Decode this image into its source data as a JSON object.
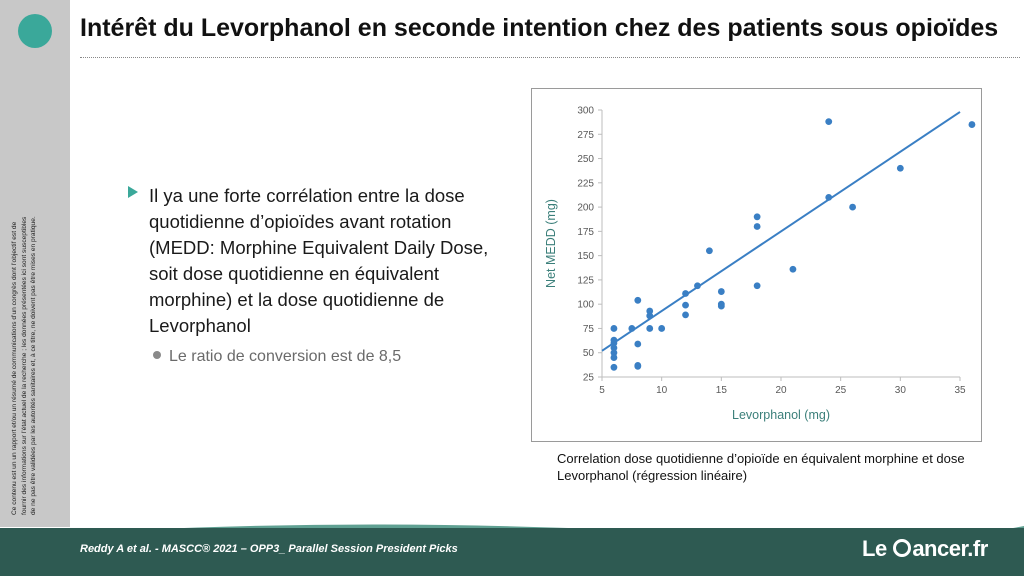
{
  "slide": {
    "title": "Intérêt du Levorphanol en seconde intention chez des patients sous opioïdes",
    "bullet": "Il ya une forte corrélation entre la dose quotidienne d’opioïdes avant rotation (MEDD:  Morphine Equivalent Daily Dose, soit dose quotidienne en équivalent morphine) et la dose quotidienne de Levorphanol",
    "sub_bullet": "Le ratio de conversion est de 8,5",
    "caption": "Correlation dose quotidienne d’opioïde en équivalent morphine et dose Levorphanol (régression linéaire)",
    "disclaimer": "Ce contenu est un un rapport et/ou un résumé de communications d’un congrès dont l’objectif est de fournir des informations sur l’état actuel de la recherche ; les données présentées ici sont susceptibles de ne pas être validées par les autorités sanitaires et, à ce titre, ne doivent pas être mises en pratique.",
    "footer_citation": "Reddy A et al. - MASCC® 2021 – OPP3_ Parallel Session President Picks",
    "brand_left": "Le",
    "brand_right": "ancer.fr"
  },
  "colors": {
    "accent": "#3aa89a",
    "footer": "#2e5a52",
    "footer_light": "#5fa092",
    "series": "#3a7fc4"
  },
  "chart_data": {
    "type": "scatter",
    "xlabel": "Levorphanol  (mg)",
    "ylabel": "Net MEDD (mg)",
    "xlim": [
      5,
      35
    ],
    "ylim": [
      25,
      300
    ],
    "xticks": [
      5,
      10,
      15,
      20,
      25,
      30,
      35
    ],
    "yticks": [
      25,
      50,
      75,
      100,
      125,
      150,
      175,
      200,
      225,
      250,
      275,
      300
    ],
    "grid": false,
    "points": [
      [
        6,
        75
      ],
      [
        6,
        63
      ],
      [
        6,
        60
      ],
      [
        6,
        55
      ],
      [
        6,
        50
      ],
      [
        6,
        45
      ],
      [
        6,
        35
      ],
      [
        7.5,
        75
      ],
      [
        8,
        104
      ],
      [
        8,
        59
      ],
      [
        8,
        37
      ],
      [
        8,
        36
      ],
      [
        9,
        93
      ],
      [
        9,
        88
      ],
      [
        9,
        75
      ],
      [
        10,
        75
      ],
      [
        12,
        111
      ],
      [
        12,
        99
      ],
      [
        12,
        89
      ],
      [
        13,
        119
      ],
      [
        14,
        155
      ],
      [
        15,
        113
      ],
      [
        15,
        100
      ],
      [
        15,
        98
      ],
      [
        18,
        190
      ],
      [
        18,
        180
      ],
      [
        18,
        119
      ],
      [
        21,
        136
      ],
      [
        24,
        288
      ],
      [
        24,
        210
      ],
      [
        26,
        200
      ],
      [
        30,
        240
      ],
      [
        36,
        285
      ]
    ],
    "trendline": [
      [
        5,
        52
      ],
      [
        35,
        298
      ]
    ]
  }
}
